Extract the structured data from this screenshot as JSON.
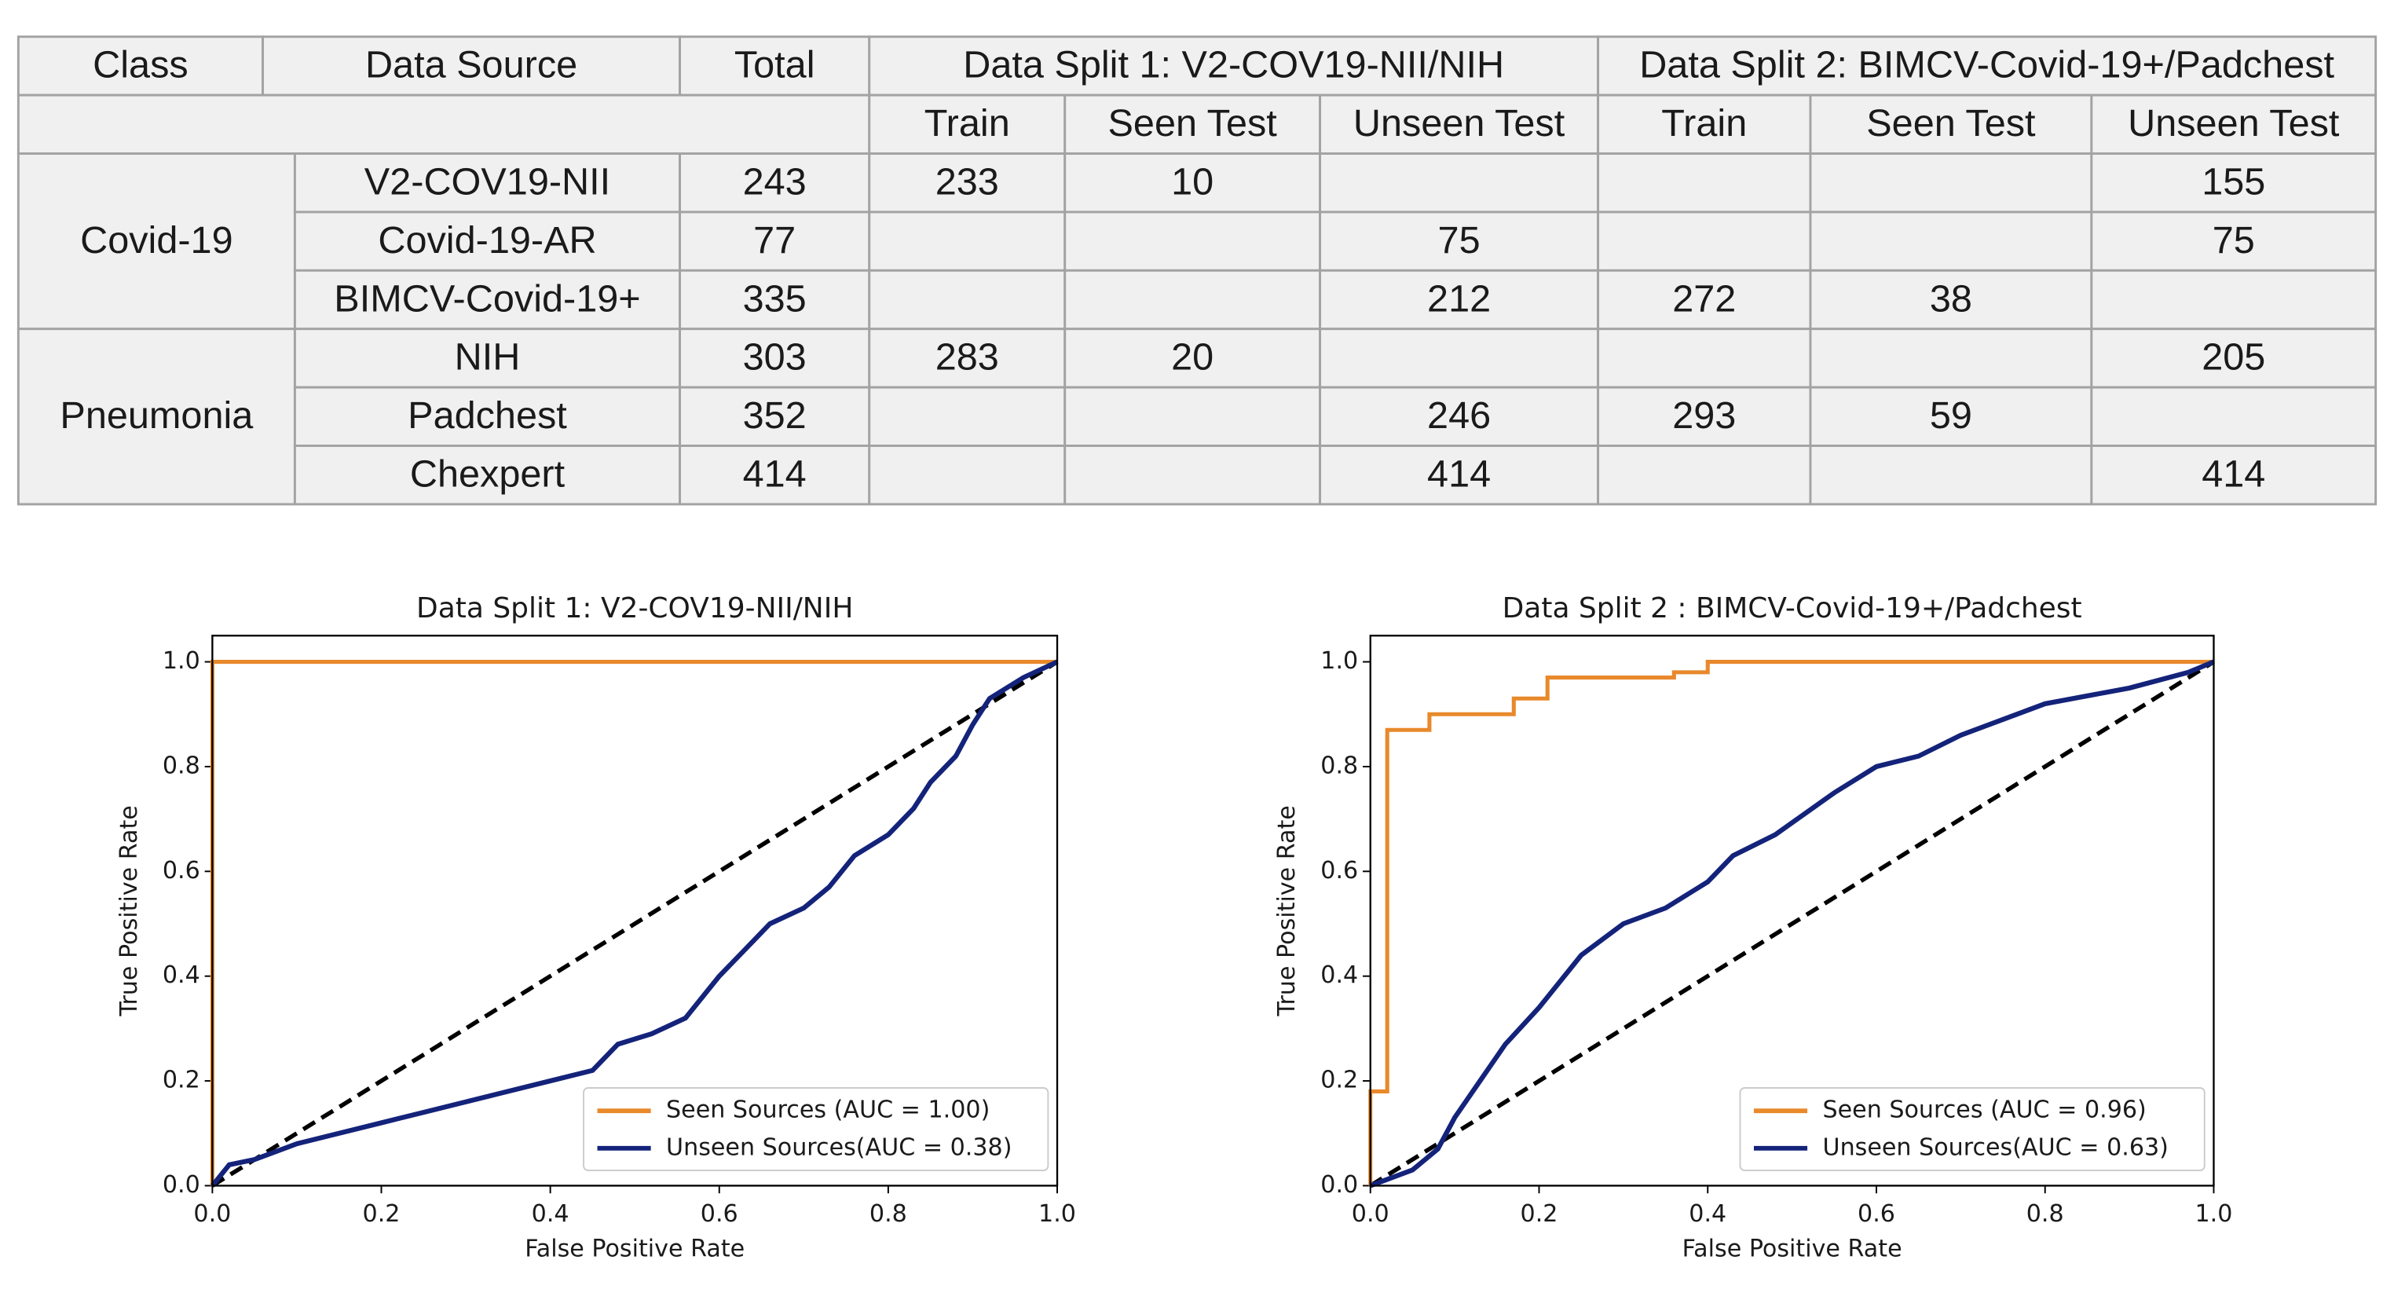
{
  "table": {
    "header": [
      [
        "Class",
        "Data Source",
        "Total",
        "Data Split 1: V2-COV19-NII/NIH",
        "Data Split 2: BIMCV-Covid-19+/Padchest"
      ],
      [
        "Train",
        "Seen Test",
        "Unseen Test",
        "Train",
        "Seen Test",
        "Unseen Test"
      ]
    ],
    "groups": [
      {
        "class": "Covid-19",
        "rows": [
          [
            "V2-COV19-NII",
            243,
            233,
            10,
            null,
            null,
            null,
            155
          ],
          [
            "Covid-19-AR",
            77,
            null,
            null,
            75,
            null,
            null,
            75
          ],
          [
            "BIMCV-Covid-19+",
            335,
            null,
            null,
            212,
            272,
            38,
            null
          ]
        ]
      },
      {
        "class": "Pneumonia",
        "rows": [
          [
            "NIH",
            303,
            283,
            20,
            null,
            null,
            null,
            205
          ],
          [
            "Padchest",
            352,
            null,
            null,
            246,
            293,
            59,
            null
          ],
          [
            "Chexpert",
            414,
            null,
            null,
            414,
            null,
            null,
            414
          ]
        ]
      }
    ]
  },
  "chart_data": [
    {
      "type": "line",
      "title": "Data Split 1: V2-COV19-NII/NIH",
      "x_label": "False Positive Rate",
      "y_label": "True Positive Rate",
      "xlim": [
        0,
        1
      ],
      "ylim": [
        0,
        1.05
      ],
      "xticks": [
        {
          "value": 0,
          "label": "0.0"
        },
        0.2,
        0.4,
        0.6,
        0.8,
        {
          "value": 1,
          "label": "1.0"
        }
      ],
      "yticks": [
        {
          "value": 0,
          "label": "0.0"
        },
        0.2,
        0.4,
        0.6,
        0.8,
        {
          "value": 1,
          "label": "1.0"
        }
      ],
      "legend": "lower right",
      "series": [
        {
          "name": "Seen Sources (AUC = 1.00)",
          "color": "#e8892b",
          "x": [
            0,
            0,
            1
          ],
          "values": [
            0,
            1,
            1
          ]
        },
        {
          "name": "Unseen Sources(AUC = 0.38)",
          "color": "#14237a",
          "x": [
            0,
            0.02,
            0.05,
            0.1,
            0.15,
            0.2,
            0.25,
            0.3,
            0.35,
            0.4,
            0.45,
            0.48,
            0.52,
            0.56,
            0.58,
            0.6,
            0.63,
            0.66,
            0.7,
            0.73,
            0.76,
            0.8,
            0.83,
            0.85,
            0.88,
            0.9,
            0.92,
            0.96,
            1
          ],
          "values": [
            0,
            0.04,
            0.05,
            0.08,
            0.1,
            0.12,
            0.14,
            0.16,
            0.18,
            0.2,
            0.22,
            0.27,
            0.29,
            0.32,
            0.36,
            0.4,
            0.45,
            0.5,
            0.53,
            0.57,
            0.63,
            0.67,
            0.72,
            0.77,
            0.82,
            0.88,
            0.93,
            0.97,
            1
          ]
        }
      ]
    },
    {
      "type": "line",
      "title": "Data Split 2 : BIMCV-Covid-19+/Padchest",
      "x_label": "False Positive Rate",
      "y_label": "True Positive Rate",
      "xlim": [
        0,
        1
      ],
      "ylim": [
        0,
        1.05
      ],
      "xticks": [
        {
          "value": 0,
          "label": "0.0"
        },
        0.2,
        0.4,
        0.6,
        0.8,
        {
          "value": 1,
          "label": "1.0"
        }
      ],
      "yticks": [
        {
          "value": 0,
          "label": "0.0"
        },
        0.2,
        0.4,
        0.6,
        0.8,
        {
          "value": 1,
          "label": "1.0"
        }
      ],
      "legend": "lower right",
      "series": [
        {
          "name": "Seen Sources (AUC = 0.96)",
          "color": "#e8892b",
          "x": [
            0,
            0,
            0.02,
            0.02,
            0.07,
            0.07,
            0.17,
            0.17,
            0.21,
            0.21,
            0.36,
            0.36,
            0.4,
            0.4,
            1
          ],
          "values": [
            0,
            0.18,
            0.18,
            0.87,
            0.87,
            0.9,
            0.9,
            0.93,
            0.93,
            0.97,
            0.97,
            0.98,
            0.98,
            1,
            1
          ]
        },
        {
          "name": "Unseen Sources(AUC = 0.63)",
          "color": "#14237a",
          "x": [
            0,
            0.05,
            0.08,
            0.1,
            0.13,
            0.16,
            0.2,
            0.25,
            0.3,
            0.35,
            0.4,
            0.43,
            0.48,
            0.55,
            0.6,
            0.65,
            0.7,
            0.75,
            0.8,
            0.9,
            0.97,
            1
          ],
          "values": [
            0,
            0.03,
            0.07,
            0.13,
            0.2,
            0.27,
            0.34,
            0.44,
            0.5,
            0.53,
            0.58,
            0.63,
            0.67,
            0.75,
            0.8,
            0.82,
            0.86,
            0.89,
            0.92,
            0.95,
            0.98,
            1
          ]
        }
      ]
    }
  ]
}
